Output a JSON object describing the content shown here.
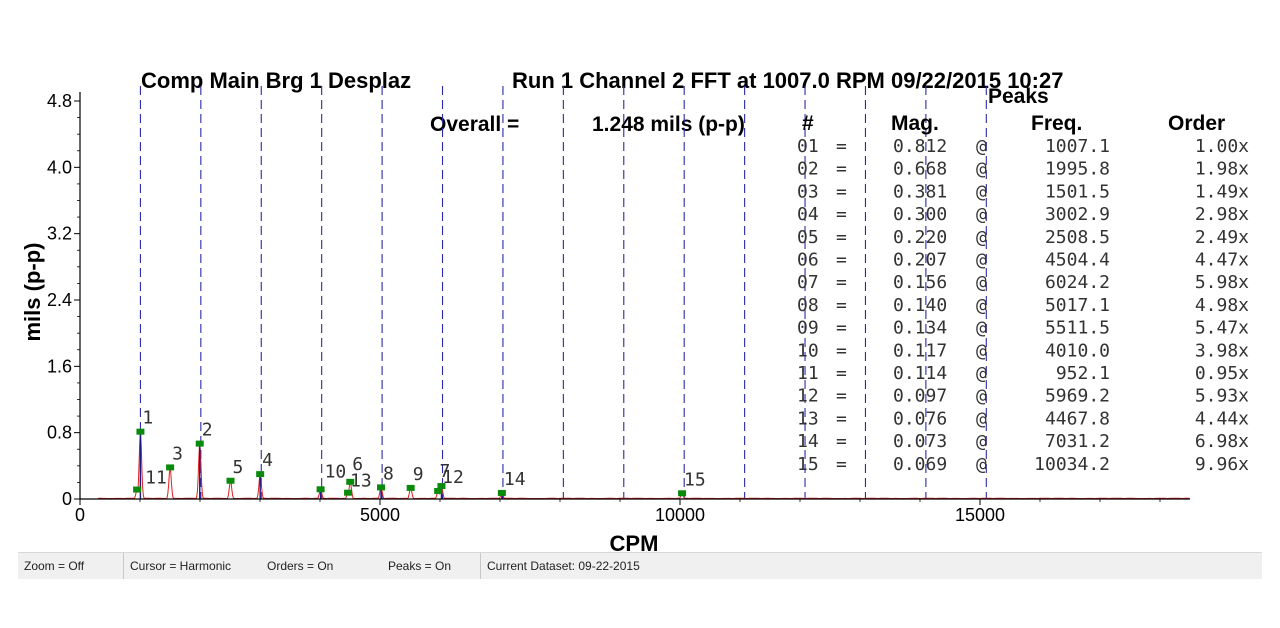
{
  "titles": {
    "left": "Comp Main Brg  1 Desplaz",
    "right": "Run 1 Channel 2 FFT at 1007.0 RPM 09/22/2015 10:27"
  },
  "overall": {
    "label": "Overall =",
    "value": "1.248 mils (p-p)"
  },
  "peaks_table": {
    "title": "Peaks",
    "headers": {
      "num": "#",
      "mag": "Mag.",
      "freq": "Freq.",
      "order": "Order"
    },
    "rows": [
      {
        "num": "01",
        "mag": "0.812",
        "freq": "1007.1",
        "order": "1.00x"
      },
      {
        "num": "02",
        "mag": "0.668",
        "freq": "1995.8",
        "order": "1.98x"
      },
      {
        "num": "03",
        "mag": "0.381",
        "freq": "1501.5",
        "order": "1.49x"
      },
      {
        "num": "04",
        "mag": "0.300",
        "freq": "3002.9",
        "order": "2.98x"
      },
      {
        "num": "05",
        "mag": "0.220",
        "freq": "2508.5",
        "order": "2.49x"
      },
      {
        "num": "06",
        "mag": "0.207",
        "freq": "4504.4",
        "order": "4.47x"
      },
      {
        "num": "07",
        "mag": "0.156",
        "freq": "6024.2",
        "order": "5.98x"
      },
      {
        "num": "08",
        "mag": "0.140",
        "freq": "5017.1",
        "order": "4.98x"
      },
      {
        "num": "09",
        "mag": "0.134",
        "freq": "5511.5",
        "order": "5.47x"
      },
      {
        "num": "10",
        "mag": "0.117",
        "freq": "4010.0",
        "order": "3.98x"
      },
      {
        "num": "11",
        "mag": "0.114",
        "freq": "952.1",
        "order": "0.95x"
      },
      {
        "num": "12",
        "mag": "0.097",
        "freq": "5969.2",
        "order": "5.93x"
      },
      {
        "num": "13",
        "mag": "0.076",
        "freq": "4467.8",
        "order": "4.44x"
      },
      {
        "num": "14",
        "mag": "0.073",
        "freq": "7031.2",
        "order": "6.98x"
      },
      {
        "num": "15",
        "mag": "0.069",
        "freq": "10034.2",
        "order": "9.96x"
      }
    ]
  },
  "chart_data": {
    "type": "line",
    "title": "Run 1 Channel 2 FFT at 1007.0 RPM 09/22/2015 10:27",
    "xlabel": "CPM",
    "ylabel": "mils (p-p)",
    "xlim": [
      0,
      18500
    ],
    "ylim": [
      0,
      4.8
    ],
    "x_ticks": [
      0,
      5000,
      10000,
      15000
    ],
    "x_tick_labels": [
      "0",
      "5000",
      "10000",
      "15000"
    ],
    "y_ticks": [
      0,
      0.8,
      1.6,
      2.4,
      3.2,
      4.0,
      4.8
    ],
    "y_tick_labels": [
      "0",
      "0.8",
      "1.6",
      "2.4",
      "3.2",
      "4.0",
      "4.8"
    ],
    "harmonic_cursors_cpm": [
      1007,
      2014,
      3021,
      4028,
      5035,
      6042,
      7049,
      8056,
      9063,
      10070,
      11077,
      12084,
      13091,
      14098,
      15105
    ],
    "peaks": [
      {
        "label": "1",
        "freq": 1007.1,
        "mag": 0.812
      },
      {
        "label": "2",
        "freq": 1995.8,
        "mag": 0.668
      },
      {
        "label": "3",
        "freq": 1501.5,
        "mag": 0.381
      },
      {
        "label": "4",
        "freq": 3002.9,
        "mag": 0.3
      },
      {
        "label": "5",
        "freq": 2508.5,
        "mag": 0.22
      },
      {
        "label": "6",
        "freq": 4504.4,
        "mag": 0.207
      },
      {
        "label": "7",
        "freq": 6024.2,
        "mag": 0.156
      },
      {
        "label": "8",
        "freq": 5017.1,
        "mag": 0.14
      },
      {
        "label": "9",
        "freq": 5511.5,
        "mag": 0.134
      },
      {
        "label": "10",
        "freq": 4010.0,
        "mag": 0.117
      },
      {
        "label": "11",
        "freq": 952.1,
        "mag": 0.114
      },
      {
        "label": "12",
        "freq": 5969.2,
        "mag": 0.097
      },
      {
        "label": "13",
        "freq": 4467.8,
        "mag": 0.076
      },
      {
        "label": "14",
        "freq": 7031.2,
        "mag": 0.073
      },
      {
        "label": "15",
        "freq": 10034.2,
        "mag": 0.069
      }
    ],
    "colors": {
      "spectrum": "#e02020",
      "harmonic_spectrum": "#1a1a8a",
      "cursor": "#2a2aa8",
      "peak_marker": "#0a8a0a"
    }
  },
  "status_bar": {
    "zoom": "Zoom = Off",
    "cursor": "Cursor = Harmonic",
    "orders": "Orders = On",
    "peaks": "Peaks = On",
    "dataset": "Current Dataset:  09-22-2015"
  }
}
